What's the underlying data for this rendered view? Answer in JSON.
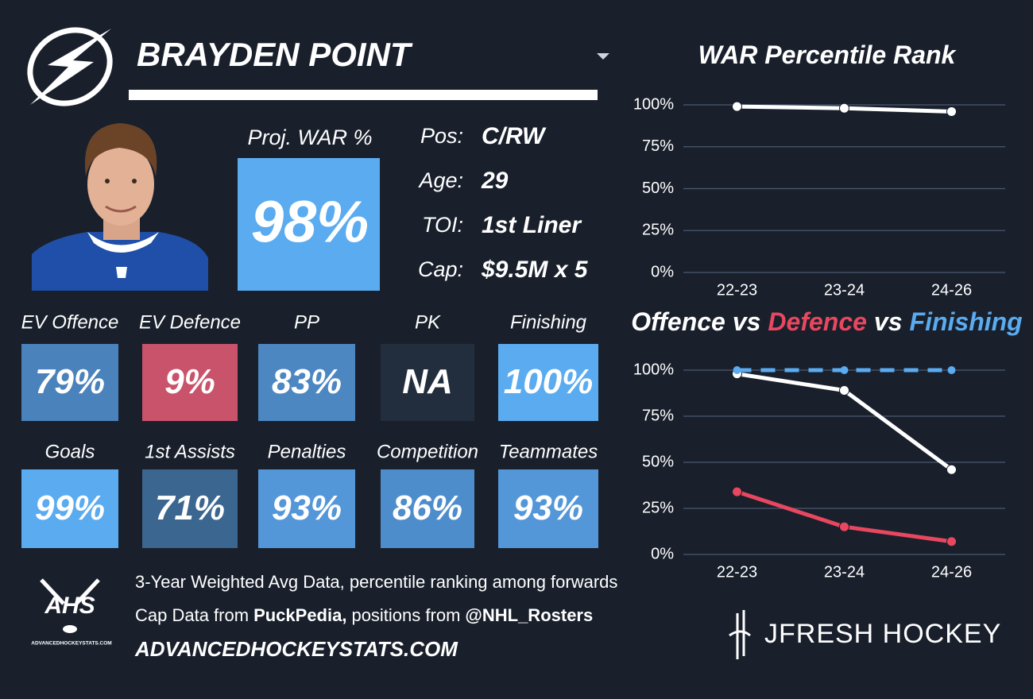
{
  "header": {
    "player": "BRAYDEN POINT"
  },
  "projection": {
    "label": "Proj. WAR %",
    "value": "98%",
    "color": "#5aabf0"
  },
  "info": [
    {
      "label": "Pos:",
      "value": "C/RW"
    },
    {
      "label": "Age:",
      "value": "29"
    },
    {
      "label": "TOI:",
      "value": "1st Liner"
    },
    {
      "label": "Cap:",
      "value": "$9.5M x 5"
    }
  ],
  "tiles": [
    {
      "label": "EV Offence",
      "value": "79%",
      "color": "#4a82bb"
    },
    {
      "label": "EV Defence",
      "value": "9%",
      "color": "#c9536a"
    },
    {
      "label": "PP",
      "value": "83%",
      "color": "#4c87c2"
    },
    {
      "label": "PK",
      "value": "NA",
      "color": "#222e3d"
    },
    {
      "label": "Finishing",
      "value": "100%",
      "color": "#5aabf0"
    },
    {
      "label": "Goals",
      "value": "99%",
      "color": "#5aabf0"
    },
    {
      "label": "1st Assists",
      "value": "71%",
      "color": "#3b6690"
    },
    {
      "label": "Penalties",
      "value": "93%",
      "color": "#5497d9"
    },
    {
      "label": "Competition",
      "value": "86%",
      "color": "#4e8dcb"
    },
    {
      "label": "Teammates",
      "value": "93%",
      "color": "#5497d9"
    }
  ],
  "footer": {
    "note": "3-Year Weighted Avg Data, percentile ranking among forwards",
    "sources": [
      {
        "text": "Cap Data from",
        "bold": false
      },
      {
        "text": "PuckPedia,",
        "bold": true
      },
      {
        "text": "positions from",
        "bold": false
      },
      {
        "text": "@NHL_Rosters",
        "bold": true
      }
    ],
    "site": "ADVANCEDHOCKEYSTATS.COM",
    "ahs_logo": {
      "title": "AHS",
      "caption": "ADVANCEDHOCKEYSTATS.COM"
    },
    "brand": "JFRESH HOCKEY"
  },
  "chart_data": [
    {
      "type": "line",
      "title": [
        {
          "text": "WAR Percentile Rank",
          "color": "#ffffff"
        }
      ],
      "categories": [
        "22-23",
        "23-24",
        "24-26"
      ],
      "series": [
        {
          "name": "WAR",
          "color": "#ffffff",
          "dashed": false,
          "values": [
            99,
            98,
            96
          ]
        }
      ],
      "ylim": [
        0,
        100
      ],
      "yticks": [
        {
          "value": 0,
          "label": "0%"
        },
        {
          "value": 25,
          "label": "25%"
        },
        {
          "value": 50,
          "label": "50%"
        },
        {
          "value": 75,
          "label": "75%"
        },
        {
          "value": 100,
          "label": "100%"
        }
      ],
      "grid": true
    },
    {
      "type": "line",
      "title": [
        {
          "text": "Offence",
          "color": "#ffffff"
        },
        {
          "text": "vs",
          "color": "#ffffff"
        },
        {
          "text": "Defence",
          "color": "#e8475f"
        },
        {
          "text": "vs",
          "color": "#ffffff"
        },
        {
          "text": "Finishing",
          "color": "#5aabf0"
        }
      ],
      "categories": [
        "22-23",
        "23-24",
        "24-26"
      ],
      "series": [
        {
          "name": "Offence",
          "color": "#ffffff",
          "dashed": false,
          "values": [
            98,
            89,
            46
          ]
        },
        {
          "name": "Defence",
          "color": "#e8475f",
          "dashed": false,
          "values": [
            34,
            15,
            7
          ]
        },
        {
          "name": "Finishing",
          "color": "#5aabf0",
          "dashed": true,
          "values": [
            100,
            100,
            100
          ]
        }
      ],
      "ylim": [
        0,
        100
      ],
      "yticks": [
        {
          "value": 0,
          "label": "0%"
        },
        {
          "value": 25,
          "label": "25%"
        },
        {
          "value": 50,
          "label": "50%"
        },
        {
          "value": 75,
          "label": "75%"
        },
        {
          "value": 100,
          "label": "100%"
        }
      ],
      "grid": true
    }
  ]
}
